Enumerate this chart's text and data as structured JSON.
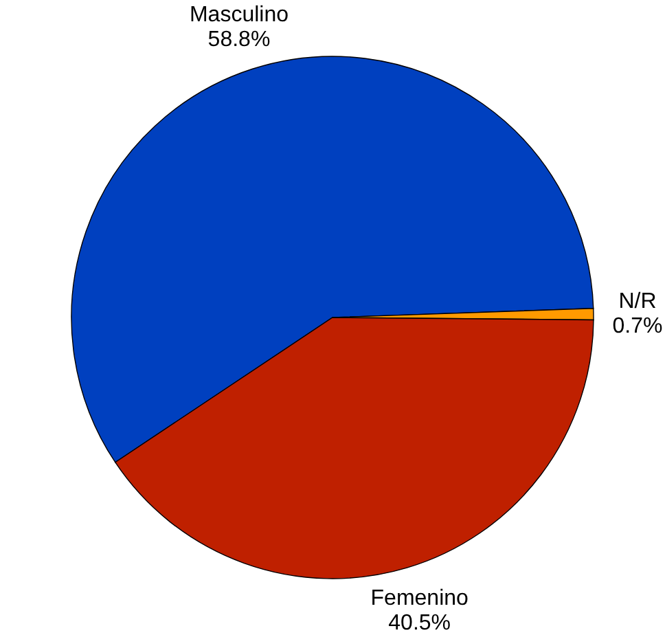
{
  "chart_data": {
    "type": "pie",
    "categories": [
      "Masculino",
      "N/R",
      "Femenino"
    ],
    "values": [
      58.8,
      0.7,
      40.5
    ],
    "colors": [
      "#0040bf",
      "#ff9a00",
      "#bf2000"
    ],
    "value_labels": [
      "58.8%",
      "0.7%",
      "40.5%"
    ]
  }
}
